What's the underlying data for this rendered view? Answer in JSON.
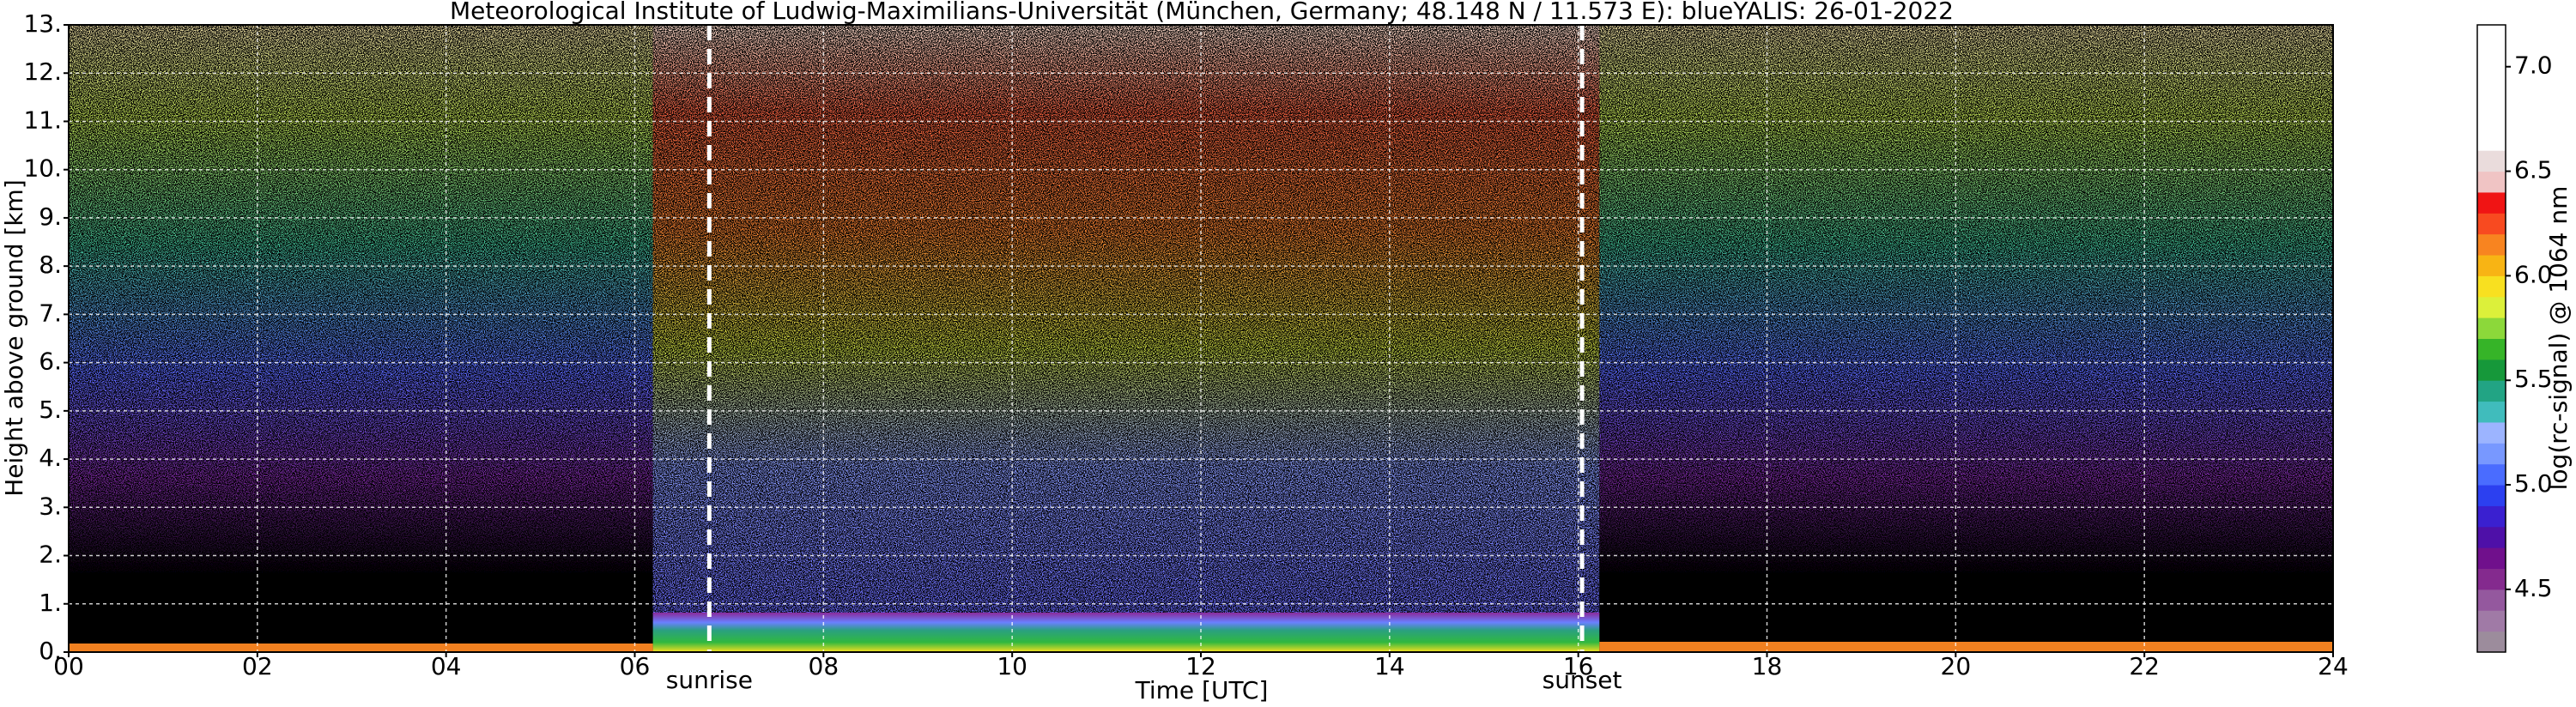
{
  "chart_data": {
    "type": "heatmap",
    "title": "Meteorological Institute of Ludwig-Maximilians-Universität (München, Germany; 48.148 N / 11.573 E):    blueYALIS: 26-01-2022",
    "x_label": "Time [UTC]",
    "y_label": "Height above ground [km]",
    "xlim": [
      0,
      24
    ],
    "xticks": [
      {
        "value": 0,
        "label": "00"
      },
      {
        "value": 2,
        "label": "02"
      },
      {
        "value": 4,
        "label": "04"
      },
      {
        "value": 6,
        "label": "06"
      },
      {
        "value": 8,
        "label": "08"
      },
      10,
      12,
      14,
      16,
      18,
      20,
      22,
      24
    ],
    "ylim": [
      0,
      13
    ],
    "yticks": [
      {
        "value": 0,
        "label": "0."
      },
      {
        "value": 1,
        "label": "1."
      },
      {
        "value": 2,
        "label": "2."
      },
      {
        "value": 3,
        "label": "3."
      },
      {
        "value": 4,
        "label": "4."
      },
      {
        "value": 5,
        "label": "5."
      },
      {
        "value": 6,
        "label": "6."
      },
      {
        "value": 7,
        "label": "7."
      },
      {
        "value": 8,
        "label": "8."
      },
      {
        "value": 9,
        "label": "9."
      },
      {
        "value": 10,
        "label": "10."
      },
      {
        "value": 11,
        "label": "11."
      },
      {
        "value": 12,
        "label": "12."
      },
      {
        "value": 13,
        "label": "13."
      }
    ],
    "grid": true,
    "annotations": [
      {
        "text": "sunrise",
        "x": 6.79
      },
      {
        "text": "sunset",
        "x": 16.04
      }
    ],
    "colorbar": {
      "label": "log(rc-signal) @ 1064 nm",
      "lim": [
        4.2,
        7.2
      ],
      "ticks": [
        4.5,
        {
          "value": 5,
          "label": "5.0"
        },
        5.5,
        {
          "value": 6,
          "label": "6.0"
        },
        6.5,
        {
          "value": 7,
          "label": "7.0"
        }
      ],
      "colors": [
        "#9c8c9c",
        "#a07aa6",
        "#94589e",
        "#842a8e",
        "#70108c",
        "#4e10a8",
        "#3a20d0",
        "#2c40f0",
        "#4a6cff",
        "#7898ff",
        "#9cb4ff",
        "#40bcbc",
        "#22a484",
        "#16983a",
        "#36b428",
        "#8cd83a",
        "#dcf03a",
        "#f8e020",
        "#f8b414",
        "#f88420",
        "#f84a20",
        "#f01414",
        "#f0c4c4",
        "#eadcdc",
        "#ffffff",
        "#ffffff",
        "#ffffff",
        "#ffffff",
        "#ffffff",
        "#ffffff"
      ]
    }
  }
}
